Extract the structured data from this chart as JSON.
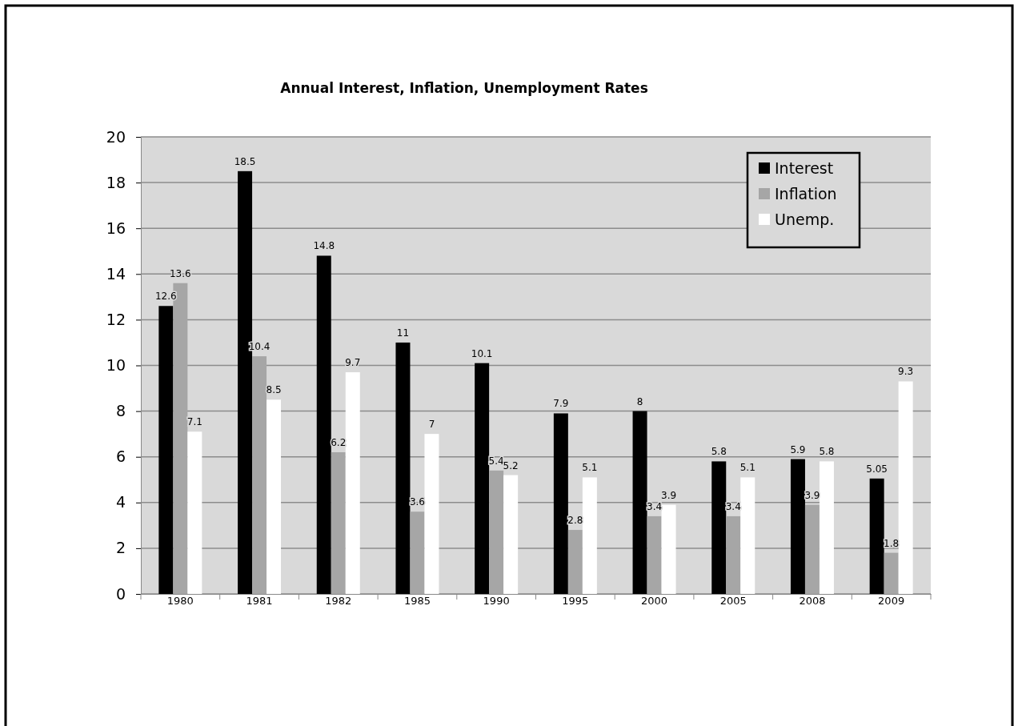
{
  "chart_data": {
    "type": "bar",
    "title": "Annual Interest, Inflation, Unemployment Rates",
    "categories": [
      "1980",
      "1981",
      "1982",
      "1985",
      "1990",
      "1995",
      "2000",
      "2005",
      "2008",
      "2009"
    ],
    "series": [
      {
        "name": "Interest",
        "color": "#000000",
        "values": [
          12.6,
          18.5,
          14.8,
          11,
          10.1,
          7.9,
          8,
          5.8,
          5.9,
          5.05
        ]
      },
      {
        "name": "Inflation",
        "color": "#a6a6a6",
        "values": [
          13.6,
          10.4,
          6.2,
          3.6,
          5.4,
          2.8,
          3.4,
          3.4,
          3.9,
          1.8
        ]
      },
      {
        "name": "Unemp.",
        "color": "#ffffff",
        "values": [
          7.1,
          8.5,
          9.7,
          7,
          5.2,
          5.1,
          3.9,
          5.1,
          5.8,
          9.3
        ]
      }
    ],
    "ylim": [
      0,
      20
    ],
    "yticks": [
      0,
      2,
      4,
      6,
      8,
      10,
      12,
      14,
      16,
      18,
      20
    ],
    "grid": "y",
    "legend": "top right",
    "data_labels": true
  }
}
